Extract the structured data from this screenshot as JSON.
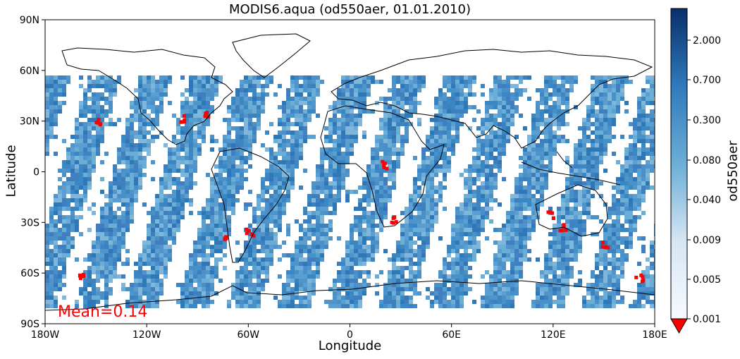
{
  "title": "MODIS6.aqua (od550aer, 01.01.2010)",
  "xlabel": "Longitude",
  "ylabel": "Latitude",
  "colorbar_label": "od550aer",
  "mean_text": "Mean=0.14",
  "x_ticks": [
    "180W",
    "120W",
    "60W",
    "0",
    "60E",
    "120E",
    "180E"
  ],
  "y_ticks": [
    "90N",
    "60N",
    "30N",
    "0",
    "30S",
    "60S",
    "90S"
  ],
  "colorbar_ticks": [
    "2.000",
    "0.700",
    "0.300",
    "0.080",
    "0.040",
    "0.009",
    "0.005",
    "0.001"
  ],
  "colors": {
    "over_range": "#ff0000",
    "under_range": "#ff0000",
    "cmap_dark": "#08306b",
    "cmap_mid": "#4a90c8",
    "cmap_light": "#f7fbff"
  },
  "chart_data": {
    "type": "heatmap",
    "title": "MODIS6.aqua (od550aer, 01.01.2010)",
    "xlabel": "Longitude",
    "ylabel": "Latitude",
    "xlim": [
      -180,
      180
    ],
    "ylim": [
      -90,
      90
    ],
    "colorbar": {
      "label": "od550aer",
      "scale": "log",
      "range": [
        0.001,
        2.0
      ],
      "extend": "min"
    },
    "mean": 0.14
  }
}
